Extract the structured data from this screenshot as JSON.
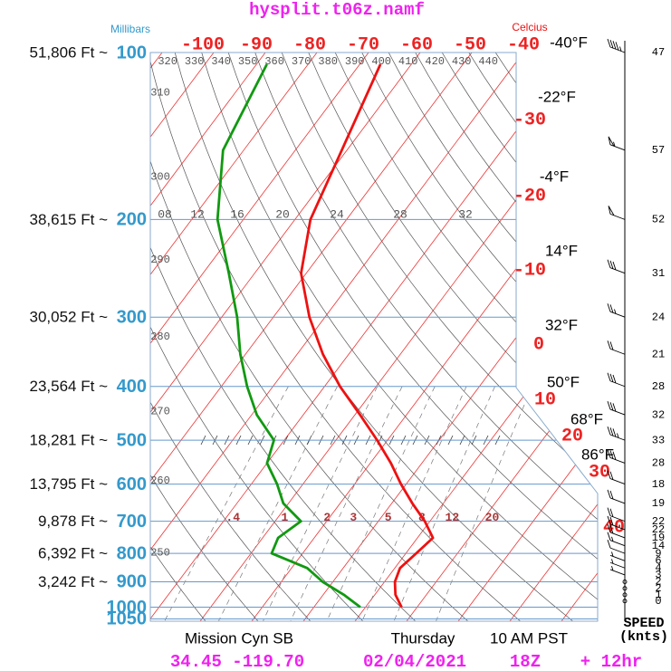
{
  "chart_data": {
    "type": "skew-t",
    "title": "hysplit.t06z.namf",
    "y_axis_label": "Millibars",
    "x_axis_label": "Celcius",
    "pressure_levels": [
      100,
      200,
      300,
      400,
      500,
      600,
      700,
      800,
      900,
      1000,
      1050
    ],
    "altitude_labels": [
      "51,806 Ft ~",
      "38,615 Ft ~",
      "30,052 Ft ~",
      "23,564 Ft ~",
      "18,281 Ft ~",
      "13,795 Ft ~",
      "9,878 Ft ~",
      "6,392 Ft ~",
      "3,242 Ft ~",
      null,
      null
    ],
    "temperature_ticks": [
      -100,
      -90,
      -80,
      -70,
      -60,
      -50,
      -40,
      -30,
      -20,
      -10,
      0,
      10,
      20,
      30,
      40
    ],
    "fahrenheit_labels": [
      "-40°F",
      "-22°F",
      "-4°F",
      "14°F",
      "32°F",
      "50°F",
      "68°F",
      "86°F"
    ],
    "theta_labels": [
      320,
      330,
      340,
      350,
      360,
      370,
      380,
      390,
      400,
      410,
      420,
      430,
      440,
      310,
      300,
      290,
      280,
      270,
      260,
      250
    ],
    "mixing_ratio_upper": [
      {
        "value": 8,
        "label": "08"
      },
      12,
      16,
      20,
      24,
      28,
      32
    ],
    "mixing_ratio_lower": [
      {
        "value": 0.4,
        "label": ".4"
      },
      1,
      2,
      3,
      5,
      8,
      12,
      20
    ],
    "temperature": {
      "color": "#ee1111",
      "pressure": [
        105,
        150,
        200,
        250,
        300,
        350,
        400,
        450,
        500,
        550,
        600,
        650,
        700,
        750,
        800,
        850,
        900,
        950,
        1000
      ],
      "values": [
        -66,
        -61,
        -57,
        -51,
        -43,
        -35,
        -27,
        -19,
        -12,
        -6,
        -1,
        4,
        9,
        13,
        12,
        11,
        12,
        14,
        17
      ]
    },
    "dewpoint": {
      "color": "#119911",
      "pressure": [
        105,
        150,
        200,
        250,
        300,
        350,
        400,
        450,
        500,
        550,
        600,
        650,
        700,
        750,
        800,
        850,
        900,
        950,
        1000
      ],
      "values": [
        -88,
        -84,
        -75,
        -65,
        -57,
        -51,
        -45,
        -39,
        -32,
        -30,
        -25,
        -21,
        -15,
        -17,
        -16,
        -7,
        -2,
        4,
        9
      ]
    },
    "wind": {
      "pressure": [
        100,
        150,
        200,
        250,
        300,
        350,
        400,
        450,
        500,
        550,
        600,
        650,
        700,
        725,
        750,
        775,
        800,
        825,
        850,
        875,
        900,
        925,
        950,
        975
      ],
      "speed": [
        47,
        57,
        52,
        31,
        24,
        21,
        28,
        32,
        33,
        28,
        18,
        19,
        22,
        22,
        19,
        14,
        9,
        6,
        4,
        3,
        2,
        2,
        1,
        0
      ]
    },
    "wind_axis_label": [
      "SPEED",
      "(knts)"
    ],
    "footer": {
      "location": "Mission Cyn SB",
      "day": "Thursday",
      "time": "10 AM PST",
      "coordinates": "34.45 -119.70",
      "date": "02/04/2021",
      "run": "18Z",
      "forecast": "+ 12hr"
    }
  }
}
